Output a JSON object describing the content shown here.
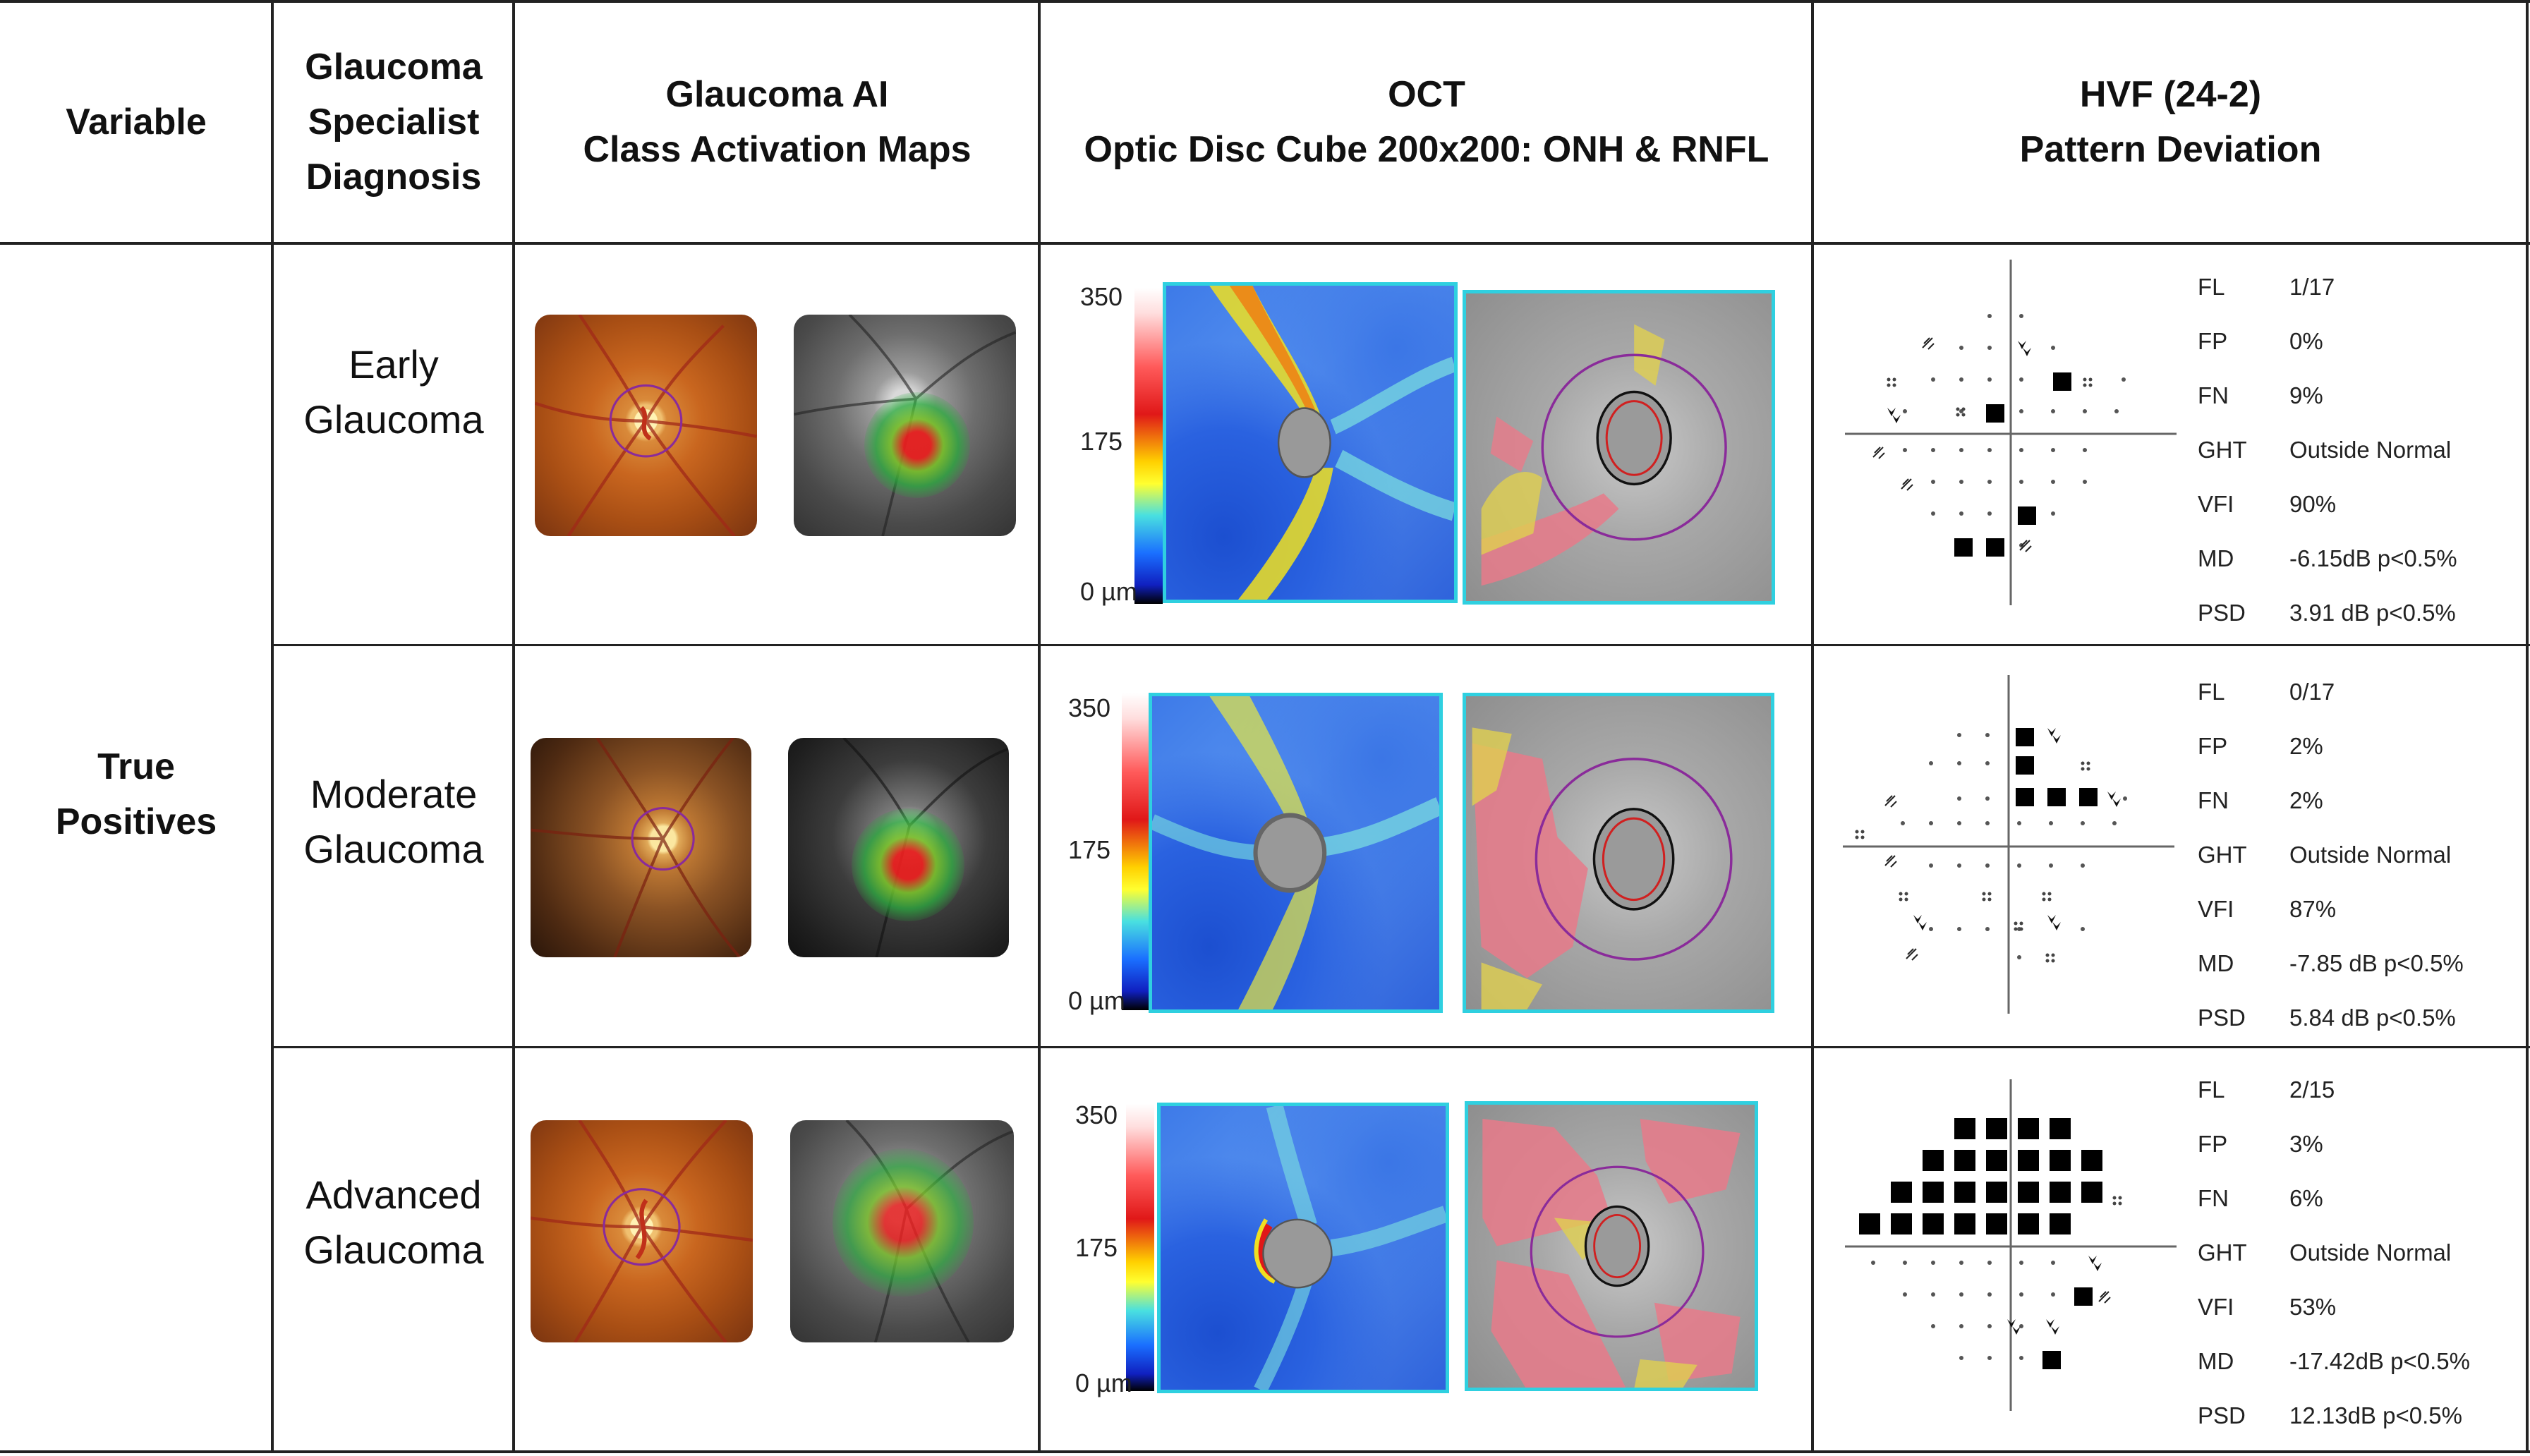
{
  "header": {
    "variable": "Variable",
    "specialist": [
      "Glaucoma",
      "Specialist",
      "Diagnosis"
    ],
    "ai": [
      "Glaucoma AI",
      "Class Activation Maps"
    ],
    "oct": [
      "OCT",
      "Optic Disc Cube 200x200: ONH & RNFL"
    ],
    "hvf": [
      "HVF (24-2)",
      "Pattern Deviation"
    ]
  },
  "group_label": [
    "True",
    "Positives"
  ],
  "scale_labels": {
    "top": "350",
    "mid": "175",
    "bottom": "0 µm"
  },
  "rows": [
    {
      "diagnosis": [
        "Early",
        "Glaucoma"
      ],
      "stats": [
        [
          "FL",
          "1/17"
        ],
        [
          "FP",
          "0%"
        ],
        [
          "FN",
          "9%"
        ],
        [
          "GHT",
          "Outside Normal"
        ],
        [
          "VFI",
          "90%"
        ],
        [
          "MD",
          "-6.15dB p<0.5%"
        ],
        [
          "PSD",
          "3.91 dB p<0.5%"
        ]
      ]
    },
    {
      "diagnosis": [
        "Moderate",
        "Glaucoma"
      ],
      "stats": [
        [
          "FL",
          "0/17"
        ],
        [
          "FP",
          "2%"
        ],
        [
          "FN",
          "2%"
        ],
        [
          "GHT",
          "Outside Normal"
        ],
        [
          "VFI",
          "87%"
        ],
        [
          "MD",
          "-7.85 dB p<0.5%"
        ],
        [
          "PSD",
          "5.84 dB p<0.5%"
        ]
      ]
    },
    {
      "diagnosis": [
        "Advanced",
        "Glaucoma"
      ],
      "stats": [
        [
          "FL",
          "2/15"
        ],
        [
          "FP",
          "3%"
        ],
        [
          "FN",
          "6%"
        ],
        [
          "GHT",
          "Outside Normal"
        ],
        [
          "VFI",
          "53%"
        ],
        [
          "MD",
          "-17.42dB p<0.5%"
        ],
        [
          "PSD",
          "12.13dB p<0.5%"
        ]
      ]
    }
  ],
  "colors": {
    "frame": "#2fd0e0",
    "accent_ring": "#8a2b9a"
  }
}
